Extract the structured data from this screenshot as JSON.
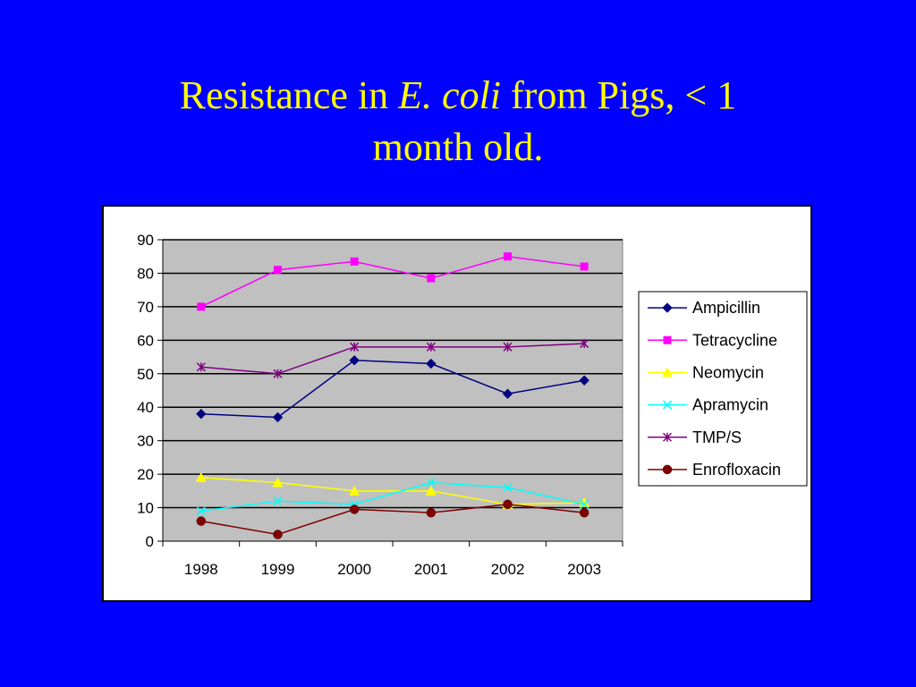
{
  "slide": {
    "title_before": "Resistance in ",
    "title_italic": "E. coli",
    "title_after": " from Pigs, < 1",
    "title_line2": "month old."
  },
  "colors": {
    "background": "#0000ff",
    "title": "#ffff00",
    "plot_area": "#c0c0c0"
  },
  "chart_data": {
    "type": "line",
    "title": "",
    "xlabel": "",
    "ylabel": "",
    "categories": [
      "1998",
      "1999",
      "2000",
      "2001",
      "2002",
      "2003"
    ],
    "ylim": [
      0,
      90
    ],
    "yticks": [
      0,
      10,
      20,
      30,
      40,
      50,
      60,
      70,
      80,
      90
    ],
    "grid": true,
    "legend_position": "right",
    "series": [
      {
        "name": "Ampicillin",
        "color": "#000080",
        "marker": "diamond",
        "values": [
          38,
          37,
          54,
          53,
          44,
          48
        ]
      },
      {
        "name": "Tetracycline",
        "color": "#ff00ff",
        "marker": "square",
        "values": [
          70,
          81,
          83.5,
          78.5,
          85,
          82
        ]
      },
      {
        "name": "Neomycin",
        "color": "#ffff00",
        "marker": "triangle",
        "values": [
          19,
          17.5,
          15,
          15,
          11,
          11.5
        ]
      },
      {
        "name": "Apramycin",
        "color": "#00ffff",
        "marker": "x",
        "values": [
          9,
          12,
          11,
          17.5,
          16,
          11
        ]
      },
      {
        "name": "TMP/S",
        "color": "#800080",
        "marker": "star",
        "values": [
          52,
          50,
          58,
          58,
          58,
          59
        ]
      },
      {
        "name": "Enrofloxacin",
        "color": "#800000",
        "marker": "circle",
        "values": [
          6,
          2,
          9.5,
          8.5,
          11,
          8.5
        ]
      }
    ]
  }
}
